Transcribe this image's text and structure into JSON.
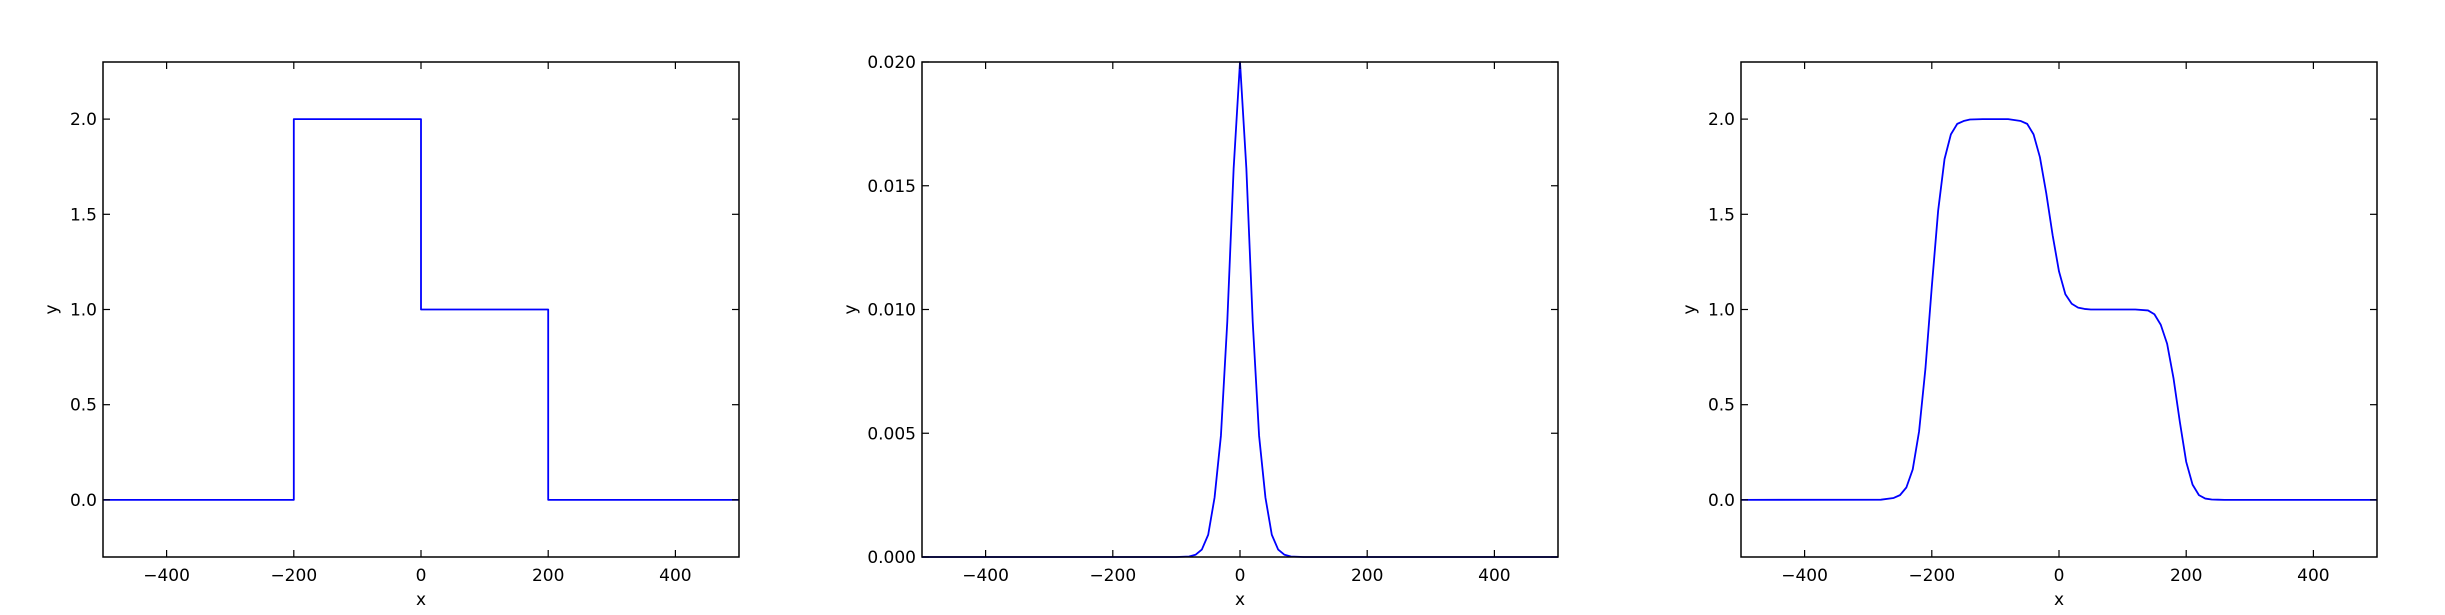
{
  "chart_data": [
    {
      "type": "line",
      "title": "",
      "xlabel": "x",
      "ylabel": "y",
      "xlim": [
        -500,
        500
      ],
      "ylim": [
        -0.3,
        2.3
      ],
      "xticks": [
        -400,
        -200,
        0,
        200,
        400
      ],
      "xtick_labels": [
        "−400",
        "−200",
        "0",
        "200",
        "400"
      ],
      "yticks": [
        0.0,
        0.5,
        1.0,
        1.5,
        2.0
      ],
      "ytick_labels": [
        "0.0",
        "0.5",
        "1.0",
        "1.5",
        "2.0"
      ],
      "grid": false,
      "series": [
        {
          "color": "#0000ff",
          "x": [
            -500,
            -200,
            -200,
            0,
            0,
            200,
            200,
            500
          ],
          "y": [
            0,
            0,
            2,
            2,
            1,
            1,
            0,
            0
          ]
        }
      ]
    },
    {
      "type": "line",
      "title": "",
      "xlabel": "x",
      "ylabel": "y",
      "xlim": [
        -500,
        500
      ],
      "ylim": [
        0,
        0.02
      ],
      "xticks": [
        -400,
        -200,
        0,
        200,
        400
      ],
      "xtick_labels": [
        "−400",
        "−200",
        "0",
        "200",
        "400"
      ],
      "yticks": [
        0.0,
        0.005,
        0.01,
        0.015,
        0.02
      ],
      "ytick_labels": [
        "0.000",
        "0.005",
        "0.010",
        "0.015",
        "0.020"
      ],
      "grid": false,
      "series": [
        {
          "color": "#0000ff",
          "x": [
            -500,
            -100,
            -80,
            -70,
            -60,
            -50,
            -40,
            -30,
            -20,
            -10,
            0,
            10,
            20,
            30,
            40,
            50,
            60,
            70,
            80,
            100,
            500
          ],
          "y": [
            0,
            0,
            2e-05,
            9e-05,
            0.0003,
            0.0009,
            0.0024,
            0.0049,
            0.0095,
            0.0157,
            0.02,
            0.0157,
            0.0095,
            0.0049,
            0.0024,
            0.0009,
            0.0003,
            9e-05,
            2e-05,
            0,
            0
          ]
        }
      ]
    },
    {
      "type": "line",
      "title": "",
      "xlabel": "x",
      "ylabel": "y",
      "xlim": [
        -500,
        500
      ],
      "ylim": [
        -0.3,
        2.3
      ],
      "xticks": [
        -400,
        -200,
        0,
        200,
        400
      ],
      "xtick_labels": [
        "−400",
        "−200",
        "0",
        "200",
        "400"
      ],
      "yticks": [
        0.0,
        0.5,
        1.0,
        1.5,
        2.0
      ],
      "ytick_labels": [
        "0.0",
        "0.5",
        "1.0",
        "1.5",
        "2.0"
      ],
      "grid": false,
      "series": [
        {
          "color": "#0000ff",
          "x": [
            -500,
            -280,
            -260,
            -250,
            -240,
            -230,
            -220,
            -210,
            -200,
            -190,
            -180,
            -170,
            -160,
            -150,
            -140,
            -120,
            -80,
            -60,
            -50,
            -40,
            -30,
            -20,
            -10,
            0,
            10,
            20,
            30,
            40,
            50,
            60,
            80,
            120,
            140,
            150,
            160,
            170,
            180,
            190,
            200,
            210,
            220,
            230,
            240,
            250,
            260,
            280,
            500
          ],
          "y": [
            0,
            0.001,
            0.01,
            0.025,
            0.065,
            0.16,
            0.36,
            0.69,
            1.12,
            1.52,
            1.79,
            1.92,
            1.975,
            1.99,
            1.998,
            2.0,
            2.0,
            1.99,
            1.975,
            1.92,
            1.8,
            1.61,
            1.39,
            1.2,
            1.08,
            1.03,
            1.01,
            1.003,
            1.0,
            1.0,
            1.0,
            1.0,
            0.995,
            0.975,
            0.92,
            0.82,
            0.64,
            0.41,
            0.2,
            0.08,
            0.025,
            0.007,
            0.002,
            0.001,
            0,
            0,
            0
          ]
        }
      ]
    }
  ]
}
